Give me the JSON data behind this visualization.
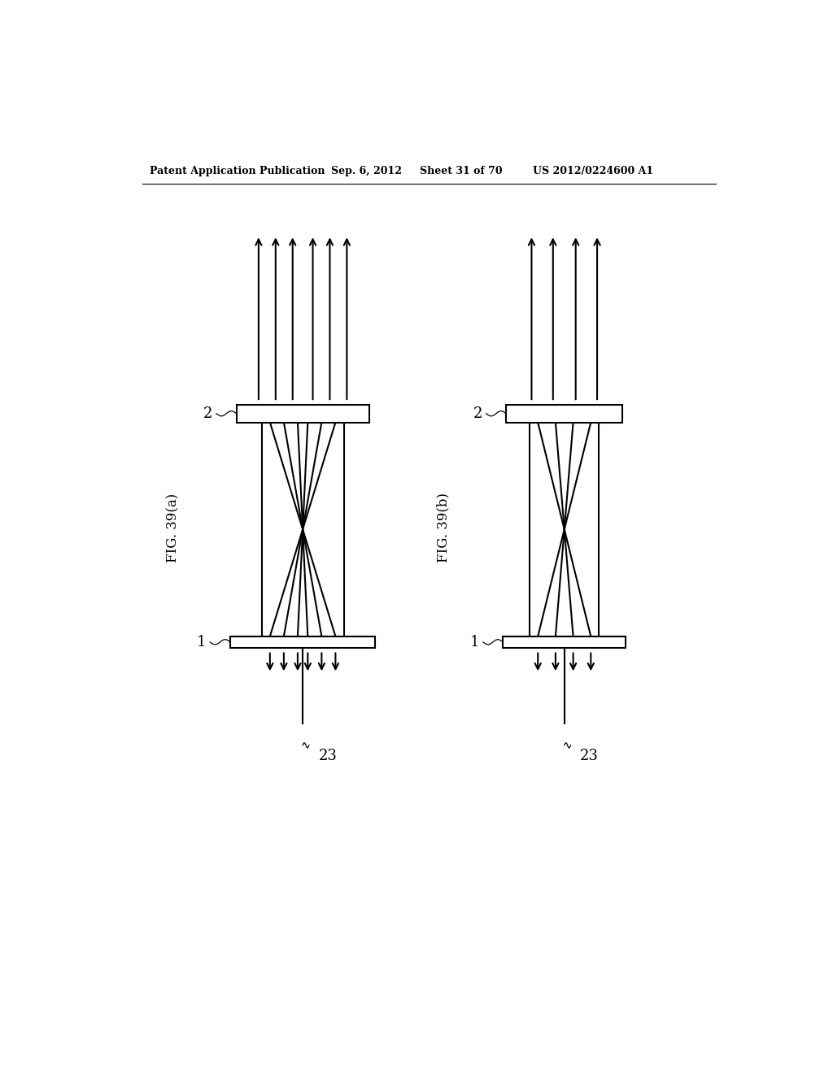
{
  "bg_color": "#ffffff",
  "header_text": "Patent Application Publication",
  "header_date": "Sep. 6, 2012",
  "header_sheet": "Sheet 31 of 70",
  "header_patent": "US 2012/0224600 A1",
  "fig_a_label": "FIG. 39(a)",
  "fig_b_label": "FIG. 39(b)",
  "lw": 1.5,
  "arrow_ms": 13
}
